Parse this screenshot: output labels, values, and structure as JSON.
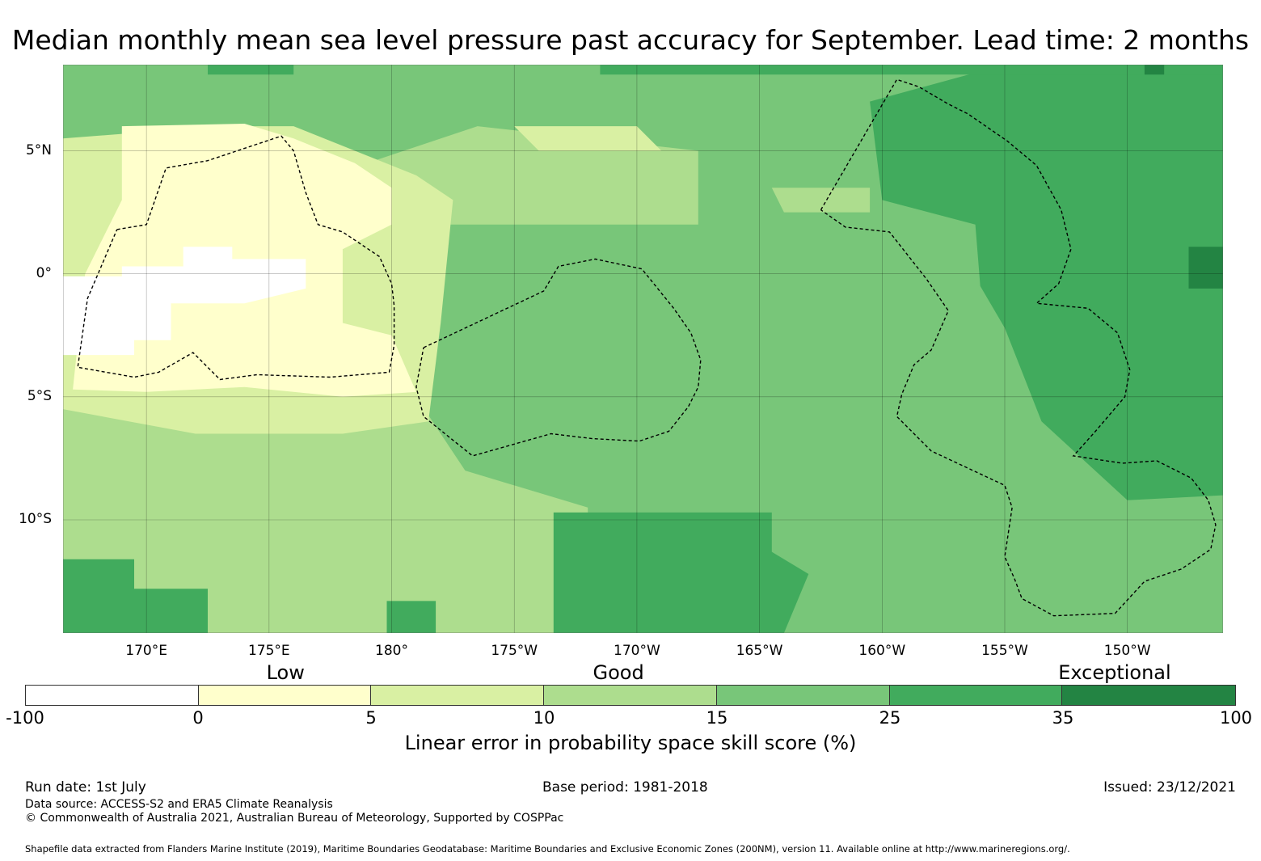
{
  "title": "Median monthly mean sea level pressure past accuracy for September. Lead time: 2 months",
  "map": {
    "lat_labels": [
      {
        "text": "5°N",
        "lat": 5
      },
      {
        "text": "0°",
        "lat": 0
      },
      {
        "text": "5°S",
        "lat": -5
      },
      {
        "text": "10°S",
        "lat": -10
      }
    ],
    "lon_labels": [
      {
        "text": "170°E",
        "lon": 170
      },
      {
        "text": "175°E",
        "lon": 175
      },
      {
        "text": "180°",
        "lon": 180
      },
      {
        "text": "175°W",
        "lon": 185
      },
      {
        "text": "170°W",
        "lon": 190
      },
      {
        "text": "165°W",
        "lon": 195
      },
      {
        "text": "160°W",
        "lon": 200
      },
      {
        "text": "155°W",
        "lon": 205
      },
      {
        "text": "150°W",
        "lon": 210
      }
    ],
    "extent": {
      "lon_min": 166.6,
      "lon_max": 213.9,
      "lat_min": -14.6,
      "lat_max": 8.5
    },
    "skill_regions": [
      {
        "level": "15 to 25",
        "poly": [
          [
            166.6,
            8.5
          ],
          [
            213.9,
            8.5
          ],
          [
            213.9,
            -14.6
          ],
          [
            166.6,
            -14.6
          ]
        ]
      },
      {
        "level": "10 to 15",
        "poly": [
          [
            166.6,
            1.5
          ],
          [
            179,
            4.5
          ],
          [
            183.5,
            6
          ],
          [
            192.5,
            5
          ],
          [
            192.5,
            2
          ],
          [
            182,
            2
          ],
          [
            179,
            -2
          ],
          [
            183,
            -8
          ],
          [
            188,
            -9.5
          ],
          [
            188,
            -14.6
          ],
          [
            166.6,
            -14.6
          ]
        ]
      },
      {
        "level": "10 to 15",
        "poly": [
          [
            195.5,
            3.5
          ],
          [
            199.5,
            3.5
          ],
          [
            199.5,
            2.5
          ],
          [
            196,
            2.5
          ]
        ]
      },
      {
        "level": "5 to 10",
        "poly": [
          [
            166.6,
            5.5
          ],
          [
            173,
            6
          ],
          [
            176,
            6
          ],
          [
            181,
            4
          ],
          [
            182.5,
            3
          ],
          [
            182,
            -2
          ],
          [
            181.5,
            -6
          ],
          [
            178,
            -6.5
          ],
          [
            172,
            -6.5
          ],
          [
            166.6,
            -5.5
          ]
        ]
      },
      {
        "level": "5 to 10",
        "poly": [
          [
            185,
            6
          ],
          [
            190,
            6
          ],
          [
            191,
            5
          ],
          [
            186,
            5
          ]
        ]
      },
      {
        "level": "0 to 5",
        "poly": [
          [
            169,
            6
          ],
          [
            174,
            6.1
          ],
          [
            176,
            5.5
          ],
          [
            178.5,
            4.5
          ],
          [
            180,
            3.5
          ],
          [
            180,
            2
          ],
          [
            178,
            1
          ],
          [
            178,
            -2
          ],
          [
            180,
            -2.5
          ],
          [
            181,
            -4.8
          ],
          [
            178,
            -5
          ],
          [
            174,
            -4.6
          ],
          [
            170,
            -4.8
          ],
          [
            167,
            -4.7
          ],
          [
            167.5,
            0
          ],
          [
            169,
            3
          ]
        ]
      },
      {
        "level": "-100 to 0",
        "poly": [
          [
            166.6,
            -0.1
          ],
          [
            169,
            -0.1
          ],
          [
            169,
            0.3
          ],
          [
            171.5,
            0.3
          ],
          [
            171.5,
            1.1
          ],
          [
            173.5,
            1.1
          ],
          [
            173.5,
            0.6
          ],
          [
            176.5,
            0.6
          ],
          [
            176.5,
            -0.6
          ],
          [
            174,
            -1.2
          ],
          [
            171,
            -1.2
          ],
          [
            171,
            -2.7
          ],
          [
            169.5,
            -2.7
          ],
          [
            169.5,
            -3.3
          ],
          [
            166.6,
            -3.3
          ]
        ]
      },
      {
        "level": "25 to 35",
        "poly": [
          [
            205,
            8.5
          ],
          [
            213.9,
            8.5
          ],
          [
            213.9,
            -9
          ],
          [
            210,
            -9.2
          ],
          [
            206.5,
            -6
          ],
          [
            205,
            -2.2
          ],
          [
            204,
            -0.5
          ],
          [
            203.8,
            2
          ],
          [
            200,
            3
          ],
          [
            199.5,
            7
          ]
        ]
      },
      {
        "level": "25 to 35",
        "poly": [
          [
            186.6,
            -9.7
          ],
          [
            195.5,
            -9.7
          ],
          [
            195.5,
            -11.3
          ],
          [
            197,
            -12.2
          ],
          [
            196,
            -14.6
          ],
          [
            186.6,
            -14.6
          ]
        ]
      },
      {
        "level": "25 to 35",
        "poly": [
          [
            166.6,
            -11.6
          ],
          [
            169.5,
            -11.6
          ],
          [
            169.5,
            -12.8
          ],
          [
            172.5,
            -12.8
          ],
          [
            172.5,
            -14.6
          ],
          [
            166.6,
            -14.6
          ]
        ]
      },
      {
        "level": "25 to 35",
        "poly": [
          [
            179.8,
            -13.3
          ],
          [
            181.8,
            -13.3
          ],
          [
            181.8,
            -14.6
          ],
          [
            179.8,
            -14.6
          ]
        ]
      },
      {
        "level": "25 to 35",
        "poly": [
          [
            172.5,
            8.5
          ],
          [
            176,
            8.5
          ],
          [
            176,
            8.1
          ],
          [
            172.5,
            8.1
          ]
        ]
      },
      {
        "level": "25 to 35",
        "poly": [
          [
            188.5,
            8.5
          ],
          [
            213.9,
            8.5
          ],
          [
            213.9,
            8.1
          ],
          [
            188.5,
            8.1
          ]
        ]
      },
      {
        "level": "35 to 100",
        "poly": [
          [
            212.5,
            1.1
          ],
          [
            213.9,
            1.1
          ],
          [
            213.9,
            -0.6
          ],
          [
            212.5,
            -0.6
          ]
        ]
      },
      {
        "level": "35 to 100",
        "poly": [
          [
            210.7,
            8.5
          ],
          [
            211.5,
            8.5
          ],
          [
            211.5,
            8.1
          ],
          [
            210.7,
            8.1
          ]
        ]
      }
    ],
    "boundaries": [
      {
        "name": "zone-west",
        "points": [
          [
            168.8,
            1.8
          ],
          [
            170,
            2
          ],
          [
            170.8,
            4.3
          ],
          [
            172.5,
            4.6
          ],
          [
            175.5,
            5.6
          ],
          [
            176,
            5
          ],
          [
            176.5,
            3.3
          ],
          [
            177,
            2
          ],
          [
            178,
            1.7
          ],
          [
            179.5,
            0.7
          ],
          [
            180,
            -0.4
          ],
          [
            180.1,
            -1.3
          ],
          [
            180.1,
            -2.9
          ],
          [
            179.9,
            -4
          ],
          [
            177.5,
            -4.2
          ],
          [
            174.5,
            -4.1
          ],
          [
            173,
            -4.3
          ],
          [
            171.9,
            -3.2
          ],
          [
            170.5,
            -4
          ],
          [
            169.5,
            -4.2
          ],
          [
            167.2,
            -3.8
          ],
          [
            167.6,
            -1
          ],
          [
            168.8,
            1.8
          ]
        ]
      },
      {
        "name": "zone-center",
        "points": [
          [
            181.3,
            -3
          ],
          [
            186.2,
            -0.7
          ],
          [
            186.8,
            0.3
          ],
          [
            188.3,
            0.6
          ],
          [
            190.2,
            0.2
          ],
          [
            191.5,
            -1.4
          ],
          [
            192.2,
            -2.4
          ],
          [
            192.6,
            -3.5
          ],
          [
            192.5,
            -4.6
          ],
          [
            192.1,
            -5.4
          ],
          [
            191.3,
            -6.4
          ],
          [
            190.1,
            -6.8
          ],
          [
            188.2,
            -6.7
          ],
          [
            186.5,
            -6.5
          ],
          [
            183.3,
            -7.4
          ],
          [
            181.3,
            -5.8
          ],
          [
            181,
            -4.6
          ],
          [
            181.3,
            -3
          ]
        ]
      },
      {
        "name": "zone-east",
        "points": [
          [
            197.5,
            2.6
          ],
          [
            200.6,
            7.9
          ],
          [
            201.5,
            7.6
          ],
          [
            202.7,
            6.9
          ],
          [
            203.5,
            6.5
          ],
          [
            205.1,
            5.4
          ],
          [
            206.3,
            4.4
          ],
          [
            207.3,
            2.6
          ],
          [
            207.7,
            1
          ],
          [
            207.2,
            -0.4
          ],
          [
            206.3,
            -1.2
          ],
          [
            208.4,
            -1.4
          ],
          [
            209.6,
            -2.4
          ],
          [
            210.1,
            -3.9
          ],
          [
            209.9,
            -5
          ],
          [
            208.7,
            -6.4
          ],
          [
            207.8,
            -7.4
          ],
          [
            209.8,
            -7.7
          ],
          [
            211.2,
            -7.6
          ],
          [
            212.6,
            -8.3
          ],
          [
            213.3,
            -9.2
          ],
          [
            213.6,
            -10.2
          ],
          [
            213.4,
            -11.2
          ],
          [
            212.2,
            -12
          ],
          [
            210.7,
            -12.5
          ],
          [
            209.5,
            -13.8
          ],
          [
            207,
            -13.9
          ],
          [
            205.7,
            -13.2
          ],
          [
            205.4,
            -12.4
          ],
          [
            205,
            -11.5
          ],
          [
            205.3,
            -9.5
          ],
          [
            205,
            -8.6
          ],
          [
            202,
            -7.2
          ],
          [
            200.6,
            -5.8
          ],
          [
            200.8,
            -4.9
          ],
          [
            201.3,
            -3.7
          ],
          [
            202,
            -3.1
          ],
          [
            202.7,
            -1.5
          ],
          [
            201.8,
            -0.2
          ],
          [
            200.3,
            1.7
          ],
          [
            198.5,
            1.9
          ],
          [
            197.5,
            2.6
          ]
        ]
      }
    ]
  },
  "legend": {
    "categories": [
      {
        "text": "Low",
        "pos": 0.215
      },
      {
        "text": "Good",
        "pos": 0.49
      },
      {
        "text": "Exceptional",
        "pos": 0.9
      }
    ],
    "segments": [
      {
        "range": "-100 to 0",
        "color": "#ffffff"
      },
      {
        "range": "0 to 5",
        "color": "#ffffcc"
      },
      {
        "range": "5 to 10",
        "color": "#d9f0a3"
      },
      {
        "range": "10 to 15",
        "color": "#addd8e"
      },
      {
        "range": "15 to 25",
        "color": "#78c679"
      },
      {
        "range": "25 to 35",
        "color": "#41ab5d"
      },
      {
        "range": "35 to 100",
        "color": "#238443"
      }
    ],
    "ticks": [
      "-100",
      "0",
      "5",
      "10",
      "15",
      "25",
      "35",
      "100"
    ],
    "label": "Linear error in probability space skill score (%)"
  },
  "footer": {
    "run_date": "Run date: 1st July",
    "base_period": "Base period: 1981-2018",
    "issued": "Issued: 23/12/2021",
    "data_source": "Data source: ACCESS-S2 and ERA5 Climate Reanalysis",
    "copyright": "© Commonwealth of Australia 2021, Australian Bureau of Meteorology, Supported by COSPPac",
    "shapefile": "Shapefile data extracted from Flanders Marine Institute (2019), Maritime Boundaries Geodatabase: Maritime Boundaries and Exclusive Economic Zones (200NM), version 11. Available online at http://www.marineregions.org/."
  }
}
